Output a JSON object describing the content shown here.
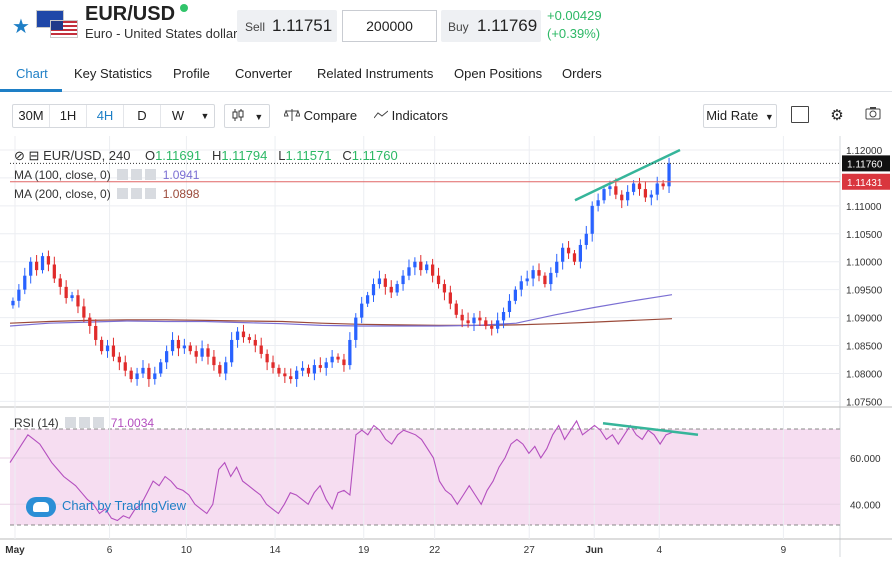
{
  "header": {
    "symbol": "EUR/USD",
    "description": "Euro - United States dollar",
    "sell_label": "Sell",
    "sell_price": "1.11751",
    "quantity": "200000",
    "buy_label": "Buy",
    "buy_price": "1.11769",
    "change": "+0.00429",
    "change_pct": "(+0.39%)",
    "status_color": "#31c46a",
    "up_color": "#2cb865"
  },
  "tabs": [
    "Chart",
    "Key Statistics",
    "Profile",
    "Converter",
    "Related Instruments",
    "Open Positions",
    "Orders"
  ],
  "toolbar": {
    "intervals": [
      "30M",
      "1H",
      "4H",
      "D",
      "W"
    ],
    "active_interval": "4H",
    "compare_label": "Compare",
    "indicators_label": "Indicators",
    "price_type": "Mid Rate"
  },
  "legend": {
    "symbol_interval": "EUR/USD, 240",
    "o_label": "O",
    "o_value": "1.11691",
    "h_label": "H",
    "h_value": "1.11794",
    "l_label": "L",
    "l_value": "1.11571",
    "c_label": "C",
    "c_value": "1.11760",
    "ma100_label": "MA (100, close, 0)",
    "ma100_value": "1.0941",
    "ma200_label": "MA (200, close, 0)",
    "ma200_value": "1.0898",
    "rsi_label": "RSI (14)",
    "rsi_value": "71.0034"
  },
  "watermark": "Chart by TradingView",
  "chart_data": {
    "type": "candlestick",
    "price_axis": {
      "ticks": [
        "1.12000",
        "1.11500",
        "1.11000",
        "1.10500",
        "1.10000",
        "1.09500",
        "1.09000",
        "1.08500",
        "1.08000",
        "1.07500"
      ],
      "range": [
        1.074,
        1.1225
      ]
    },
    "last_price_label": "1.11760",
    "ma_label": "1.11431",
    "rsi_axis": {
      "ticks": [
        "60.000",
        "40.000"
      ],
      "range": [
        25,
        82
      ]
    },
    "x_ticks": [
      "May",
      "6",
      "10",
      "14",
      "19",
      "22",
      "27",
      "Jun",
      "4",
      "9"
    ],
    "colors": {
      "up": "#2962ff",
      "down": "#e02b2b",
      "ma100": "#7b6fd3",
      "ma200": "#9b4a3a",
      "rsi": "#b44fbf",
      "trend": "#36b59a"
    },
    "close_series": [
      1.093,
      1.095,
      1.0975,
      1.1,
      1.0985,
      1.101,
      1.0995,
      1.097,
      1.0955,
      1.0935,
      1.094,
      1.092,
      1.09,
      1.0885,
      1.086,
      1.084,
      1.085,
      1.083,
      1.082,
      1.0805,
      1.079,
      1.08,
      1.081,
      1.079,
      1.08,
      1.082,
      1.084,
      1.086,
      1.0845,
      1.085,
      1.084,
      1.083,
      1.0845,
      1.083,
      1.0815,
      1.08,
      1.082,
      1.086,
      1.0875,
      1.0865,
      1.086,
      1.085,
      1.0835,
      1.082,
      1.081,
      1.08,
      1.0795,
      1.079,
      1.0805,
      1.081,
      1.08,
      1.0815,
      1.081,
      1.082,
      1.083,
      1.0825,
      1.0815,
      1.086,
      1.09,
      1.0925,
      1.094,
      1.096,
      1.097,
      1.0955,
      1.0945,
      1.096,
      1.0975,
      1.099,
      1.1,
      1.0985,
      1.0995,
      1.0975,
      1.096,
      1.0945,
      1.0925,
      1.0905,
      1.0895,
      1.089,
      1.09,
      1.0895,
      1.0885,
      1.088,
      1.0895,
      1.091,
      1.093,
      1.095,
      1.0965,
      1.097,
      1.0985,
      1.0975,
      1.096,
      1.098,
      1.1,
      1.1025,
      1.1015,
      1.1,
      1.103,
      1.105,
      1.11,
      1.111,
      1.113,
      1.1135,
      1.112,
      1.111,
      1.1125,
      1.114,
      1.113,
      1.1115,
      1.112,
      1.114,
      1.1135,
      1.1176
    ],
    "ma100_series": [
      1.0885,
      1.089,
      1.0892,
      1.0894,
      1.0893,
      1.0893,
      1.0891,
      1.0889,
      1.0886,
      1.0885,
      1.0885,
      1.0885,
      1.0886,
      1.089,
      1.0905,
      1.0918,
      1.093,
      1.0941
    ],
    "ma200_series": [
      1.089,
      1.0893,
      1.0895,
      1.0896,
      1.0896,
      1.0895,
      1.0894,
      1.0893,
      1.089,
      1.0888,
      1.0887,
      1.0886,
      1.0886,
      1.0887,
      1.0889,
      1.0892,
      1.0895,
      1.0898
    ],
    "rsi_series": [
      58,
      62,
      66,
      70,
      68,
      66,
      62,
      58,
      55,
      52,
      50,
      48,
      45,
      42,
      40,
      36,
      38,
      34,
      33,
      35,
      34,
      38,
      40,
      45,
      50,
      48,
      52,
      50,
      47,
      46,
      44,
      40,
      38,
      36,
      40,
      55,
      58,
      52,
      56,
      50,
      48,
      46,
      44,
      40,
      38,
      36,
      40,
      45,
      44,
      42,
      40,
      45,
      48,
      42,
      38,
      45,
      46,
      44,
      70,
      72,
      70,
      74,
      72,
      68,
      66,
      70,
      72,
      71,
      70,
      68,
      64,
      60,
      50,
      46,
      44,
      40,
      44,
      48,
      44,
      40,
      46,
      50,
      56,
      60,
      66,
      68,
      66,
      62,
      65,
      60,
      64,
      70,
      74,
      68,
      72,
      76,
      70,
      72,
      74,
      72,
      68,
      70,
      66,
      70,
      74,
      70,
      68,
      72,
      70,
      66,
      70,
      71
    ]
  }
}
